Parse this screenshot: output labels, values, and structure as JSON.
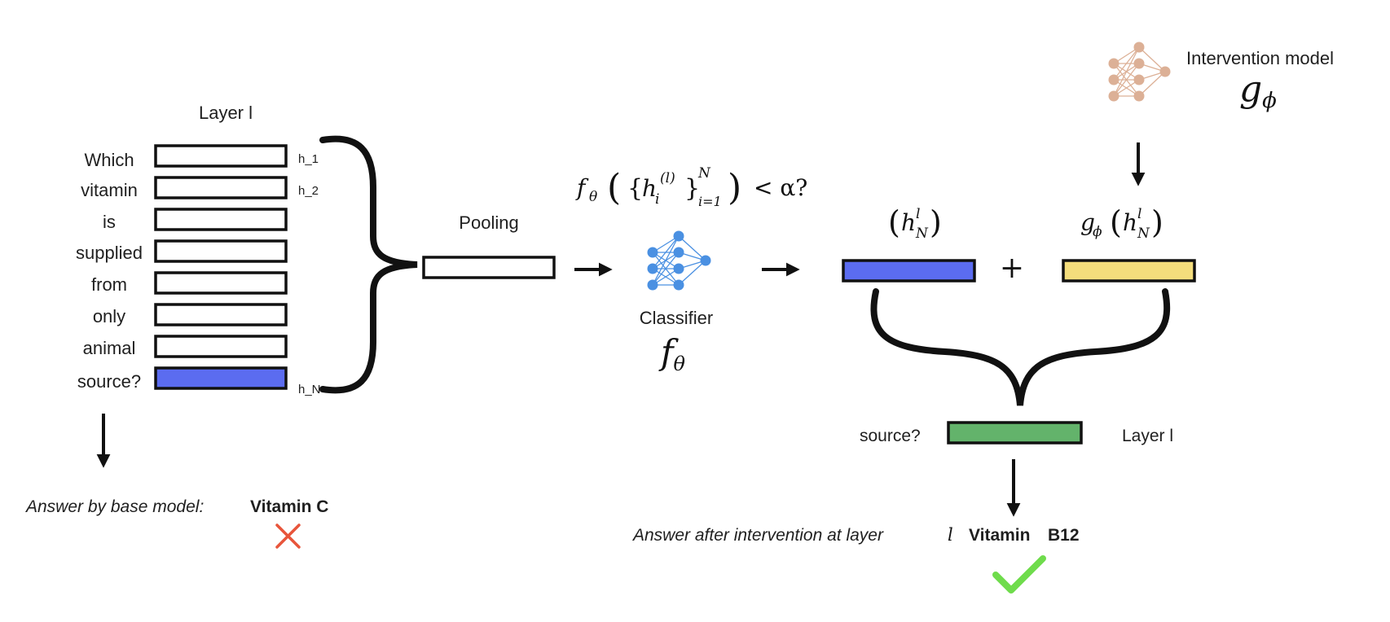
{
  "layer_title": "Layer l",
  "tokens": [
    "Which",
    "vitamin",
    "is",
    "supplied",
    "from",
    "only",
    "animal",
    "source?"
  ],
  "hidden_labels": {
    "first": "h_1",
    "second": "h_2",
    "last": "h_N"
  },
  "pooling_label": "Pooling",
  "classifier": {
    "label": "Classifier",
    "symbol_base": "f",
    "symbol_sub": "θ",
    "condition": {
      "lead": "f",
      "lead_sub": "θ",
      "open": "(",
      "set_open": "{",
      "h": "h",
      "h_sub": "i",
      "h_sup": "(l)",
      "set_close": "}",
      "range_sub": "i=1",
      "range_sup": "N",
      "close": ")",
      "tail": "< α?"
    }
  },
  "intervention_model": {
    "label": "Intervention model",
    "symbol_base": "g",
    "symbol_sub": "ϕ"
  },
  "hidden_state": {
    "open": "(",
    "base": "h",
    "sub": "N",
    "sup": "l",
    "close": ")"
  },
  "intervention_output": {
    "g": "g",
    "g_sub": "ϕ",
    "open": "(",
    "base": "h",
    "sub": "N",
    "sup": "l",
    "close": ")"
  },
  "plus_sign": "+",
  "combined": {
    "token": "source?",
    "layer": "Layer l"
  },
  "base_answer": {
    "prefix": "Answer by base model:",
    "value": "Vitamin C"
  },
  "intervened_answer": {
    "prefix": "Answer after intervention at layer",
    "layer_var": "l",
    "value_a": "Vitamin",
    "value_b": "B12"
  },
  "colors": {
    "blue_bar": "#5b6cf0",
    "yellow_bar": "#f4dd7c",
    "green_bar": "#63b36b",
    "classifier_icon": "#4a90e2",
    "intervention_icon": "#dcb096",
    "cross": "#e8553b",
    "check": "#6fdc4c",
    "ink": "#111111"
  }
}
